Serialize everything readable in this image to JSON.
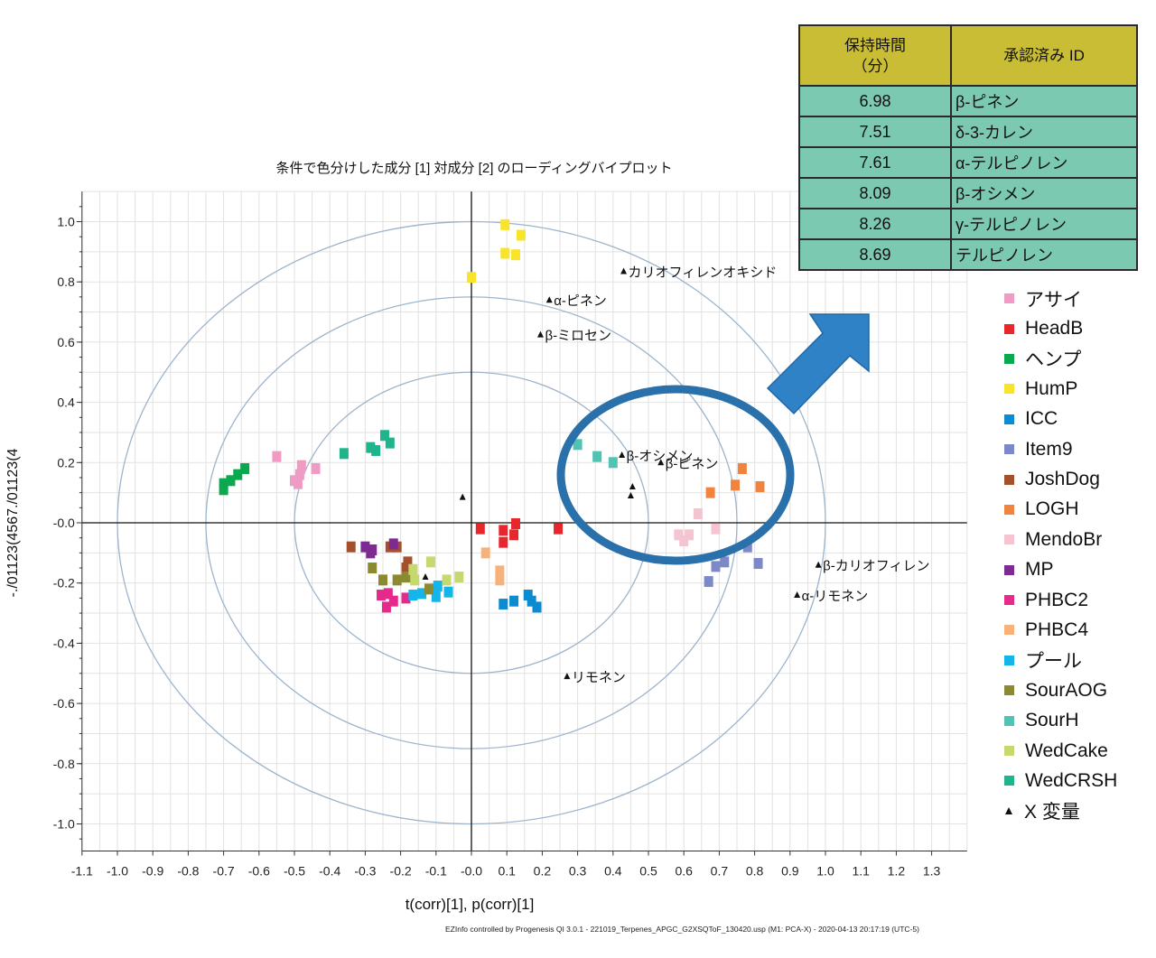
{
  "chart_data": {
    "type": "scatter",
    "title": "条件で色分けした成分 [1] 対成分 [2] のローディングバイプロット",
    "xlabel": "t(corr)[1], p(corr)[1]",
    "ylabel": "-./01123(4567./01123(4",
    "xlim": [
      -1.1,
      1.4
    ],
    "ylim": [
      -1.09,
      1.1
    ],
    "xticks": [
      "-1.1",
      "-1.0",
      "-0.9",
      "-0.8",
      "-0.7",
      "-0.6",
      "-0.5",
      "-0.4",
      "-0.3",
      "-0.2",
      "-0.1",
      "-0.0",
      "0.1",
      "0.2",
      "0.3",
      "0.4",
      "0.5",
      "0.6",
      "0.7",
      "0.8",
      "0.9",
      "1.0",
      "1.1",
      "1.2",
      "1.3"
    ],
    "yticks": [
      "1.0",
      "0.8",
      "0.6",
      "0.4",
      "0.2",
      "-0.0",
      "-0.2",
      "-0.4",
      "-0.6",
      "-0.8",
      "-1.0"
    ],
    "grid": true,
    "circles": [
      0.5,
      0.75,
      1.0
    ],
    "legend_position": "right",
    "series": [
      {
        "name": "アサイ",
        "color": "#f09bc4",
        "points": [
          [
            -0.55,
            0.22
          ],
          [
            -0.48,
            0.19
          ],
          [
            -0.485,
            0.16
          ],
          [
            -0.5,
            0.14
          ],
          [
            -0.44,
            0.18
          ],
          [
            -0.49,
            0.13
          ]
        ]
      },
      {
        "name": "HeadB",
        "color": "#e8272c",
        "points": [
          [
            0.025,
            -0.02
          ],
          [
            0.09,
            -0.025
          ],
          [
            0.125,
            -0.003
          ],
          [
            0.12,
            -0.04
          ],
          [
            0.09,
            -0.065
          ],
          [
            0.245,
            -0.02
          ]
        ]
      },
      {
        "name": "ヘンプ",
        "color": "#0aa84f",
        "points": [
          [
            -0.7,
            0.11
          ],
          [
            -0.7,
            0.13
          ],
          [
            -0.68,
            0.14
          ],
          [
            -0.66,
            0.16
          ],
          [
            -0.64,
            0.18
          ]
        ]
      },
      {
        "name": "HumP",
        "color": "#f7e42b",
        "points": [
          [
            0.095,
            0.99
          ],
          [
            0.14,
            0.955
          ],
          [
            0.095,
            0.895
          ],
          [
            0.125,
            0.89
          ],
          [
            0.0,
            0.815
          ]
        ]
      },
      {
        "name": "ICC",
        "color": "#0b8bd0",
        "points": [
          [
            0.09,
            -0.27
          ],
          [
            0.12,
            -0.26
          ],
          [
            0.16,
            -0.24
          ],
          [
            0.17,
            -0.26
          ],
          [
            0.185,
            -0.28
          ]
        ]
      },
      {
        "name": "Item9",
        "color": "#7d88c8",
        "points": [
          [
            0.78,
            -0.08
          ],
          [
            0.715,
            -0.13
          ],
          [
            0.69,
            -0.145
          ],
          [
            0.67,
            -0.195
          ],
          [
            0.81,
            -0.135
          ]
        ]
      },
      {
        "name": "JoshDog",
        "color": "#a5502d",
        "points": [
          [
            -0.34,
            -0.08
          ],
          [
            -0.23,
            -0.08
          ],
          [
            -0.21,
            -0.08
          ],
          [
            -0.18,
            -0.13
          ],
          [
            -0.185,
            -0.15
          ]
        ]
      },
      {
        "name": "LOGH",
        "color": "#f0843e",
        "points": [
          [
            0.765,
            0.18
          ],
          [
            0.745,
            0.125
          ],
          [
            0.815,
            0.12
          ],
          [
            0.675,
            0.1
          ]
        ]
      },
      {
        "name": "MendoBr",
        "color": "#f4c5d0",
        "points": [
          [
            0.64,
            0.03
          ],
          [
            0.69,
            -0.02
          ],
          [
            0.585,
            -0.04
          ],
          [
            0.615,
            -0.04
          ],
          [
            0.6,
            -0.06
          ]
        ]
      },
      {
        "name": "MP",
        "color": "#7d2b92",
        "points": [
          [
            -0.3,
            -0.08
          ],
          [
            -0.28,
            -0.09
          ],
          [
            -0.285,
            -0.1
          ],
          [
            -0.22,
            -0.07
          ]
        ]
      },
      {
        "name": "PHBC2",
        "color": "#e62a8b",
        "points": [
          [
            -0.255,
            -0.24
          ],
          [
            -0.235,
            -0.235
          ],
          [
            -0.24,
            -0.28
          ],
          [
            -0.22,
            -0.26
          ],
          [
            -0.185,
            -0.25
          ]
        ]
      },
      {
        "name": "PHBC4",
        "color": "#f7b27c",
        "points": [
          [
            0.04,
            -0.1
          ],
          [
            0.08,
            -0.16
          ],
          [
            0.08,
            -0.19
          ]
        ]
      },
      {
        "name": "プール",
        "color": "#14b6ea",
        "points": [
          [
            -0.165,
            -0.24
          ],
          [
            -0.14,
            -0.235
          ],
          [
            -0.095,
            -0.21
          ],
          [
            -0.1,
            -0.245
          ],
          [
            -0.065,
            -0.23
          ]
        ]
      },
      {
        "name": "SourAOG",
        "color": "#8b8a30",
        "points": [
          [
            -0.28,
            -0.15
          ],
          [
            -0.25,
            -0.19
          ],
          [
            -0.21,
            -0.19
          ],
          [
            -0.185,
            -0.18
          ],
          [
            -0.12,
            -0.22
          ]
        ]
      },
      {
        "name": "SourH",
        "color": "#52c2b2",
        "points": [
          [
            0.3,
            0.26
          ],
          [
            0.355,
            0.22
          ],
          [
            0.4,
            0.2
          ]
        ]
      },
      {
        "name": "WedCake",
        "color": "#c6d96e",
        "points": [
          [
            -0.115,
            -0.13
          ],
          [
            -0.165,
            -0.155
          ],
          [
            -0.16,
            -0.19
          ],
          [
            -0.07,
            -0.19
          ],
          [
            -0.035,
            -0.18
          ]
        ]
      },
      {
        "name": "WedCRSH",
        "color": "#1fb48b",
        "points": [
          [
            -0.36,
            0.23
          ],
          [
            -0.285,
            0.25
          ],
          [
            -0.27,
            0.24
          ],
          [
            -0.245,
            0.29
          ],
          [
            -0.23,
            0.265
          ]
        ]
      }
    ],
    "x_variables": {
      "name": "X 変量",
      "color": "#111111",
      "points": [
        {
          "x": 0.43,
          "y": 0.835,
          "label": "カリオフィレンオキシド"
        },
        {
          "x": 0.22,
          "y": 0.74,
          "label": "α-ピネン"
        },
        {
          "x": 0.195,
          "y": 0.625,
          "label": "β-ミロセン"
        },
        {
          "x": 0.425,
          "y": 0.225,
          "label": "β-オシメン"
        },
        {
          "x": 0.535,
          "y": 0.2,
          "label": "β-ピネン"
        },
        {
          "x": 0.455,
          "y": 0.12,
          "label": ""
        },
        {
          "x": 0.45,
          "y": 0.09,
          "label": ""
        },
        {
          "x": -0.025,
          "y": 0.085,
          "label": ""
        },
        {
          "x": -0.13,
          "y": -0.18,
          "label": ""
        },
        {
          "x": 0.98,
          "y": -0.14,
          "label": "β-カリオフィレン"
        },
        {
          "x": 0.92,
          "y": -0.24,
          "label": "α-リモネン"
        },
        {
          "x": 0.27,
          "y": -0.51,
          "label": "リモネン"
        }
      ]
    }
  },
  "table": {
    "headers": [
      "保持時間\n（分）",
      "承認済み ID"
    ],
    "rows": [
      {
        "time": "6.98",
        "id": "β-ピネン"
      },
      {
        "time": "7.51",
        "id": "δ-3-カレン"
      },
      {
        "time": "7.61",
        "id": "α-テルピノレン"
      },
      {
        "time": "8.09",
        "id": "β-オシメン"
      },
      {
        "time": "8.26",
        "id": "γ-テルピノレン"
      },
      {
        "time": "8.69",
        "id": "テルピノレン"
      }
    ]
  },
  "highlight_color": "#2a70aa",
  "arrow_color": "#2f82c6",
  "footer": "EZInfo controlled by Progenesis QI 3.0.1 - 221019_Terpenes_APGC_G2XSQToF_130420.usp (M1: PCA-X) - 2020-04-13 20:17:19 (UTC-5)"
}
